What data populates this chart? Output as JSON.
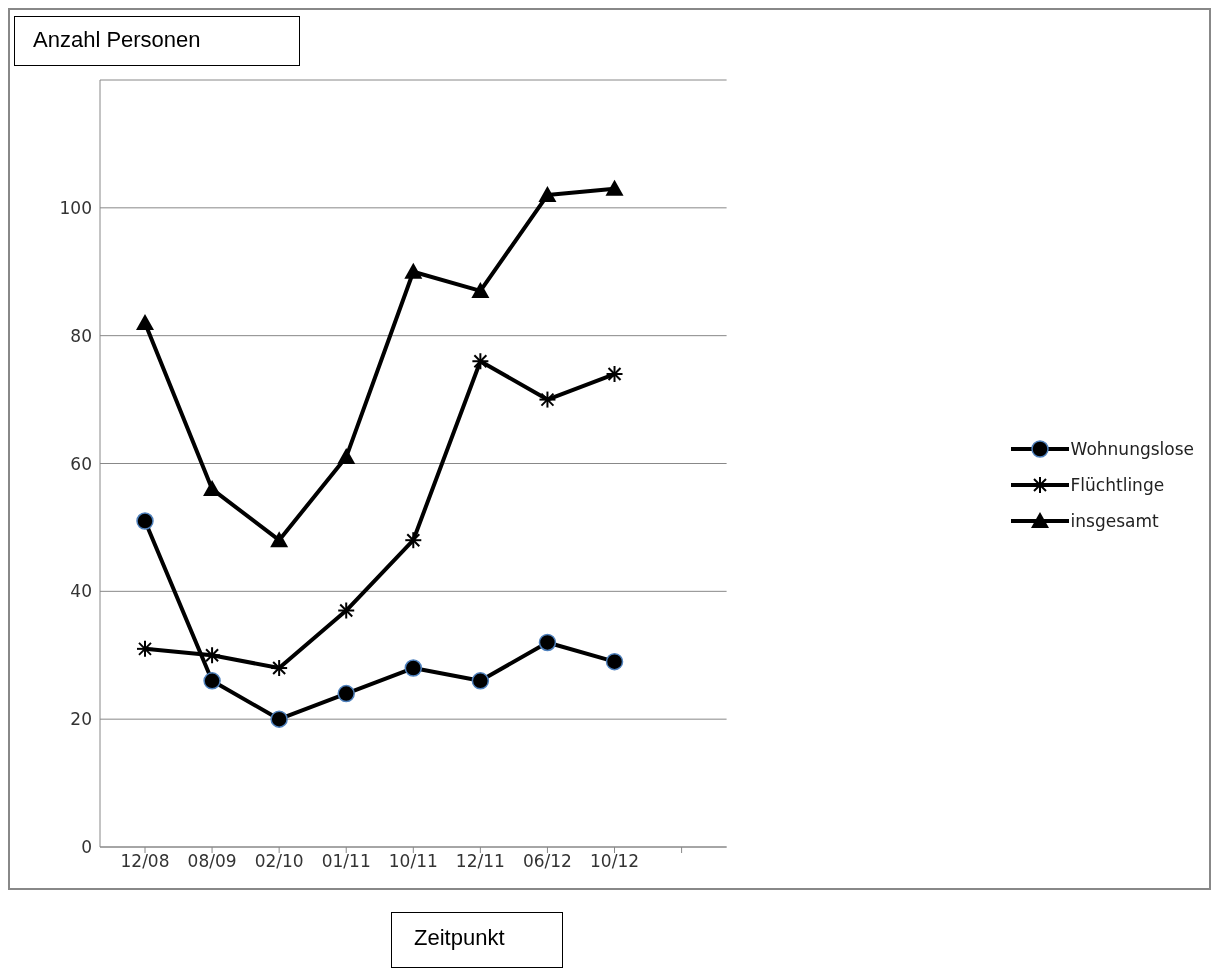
{
  "chart_data": {
    "type": "line",
    "xlabel": "Zeitpunkt",
    "ylabel": "Anzahl Personen",
    "categories": [
      "12/08",
      "08/09",
      "02/10",
      "01/11",
      "10/11",
      "12/11",
      "06/12",
      "10/12",
      null
    ],
    "series": [
      {
        "name": "Wohnungslose",
        "color": "#000000",
        "marker": "circle",
        "values": [
          51,
          26,
          20,
          24,
          28,
          26,
          32,
          29,
          null
        ]
      },
      {
        "name": "Flüchtlinge",
        "color": "#000000",
        "marker": "cross",
        "values": [
          31,
          30,
          28,
          37,
          48,
          76,
          70,
          74,
          null
        ]
      },
      {
        "name": "insgesamt",
        "color": "#000000",
        "marker": "triangle",
        "values": [
          82,
          56,
          48,
          61,
          90,
          87,
          102,
          103,
          null
        ]
      }
    ],
    "ylim": [
      0,
      120
    ],
    "yticks": [
      0,
      20,
      40,
      60,
      80,
      100,
      {
        "value": 120,
        "label": null
      }
    ],
    "grid": "y",
    "legend": "right",
    "line_style": "solid"
  }
}
